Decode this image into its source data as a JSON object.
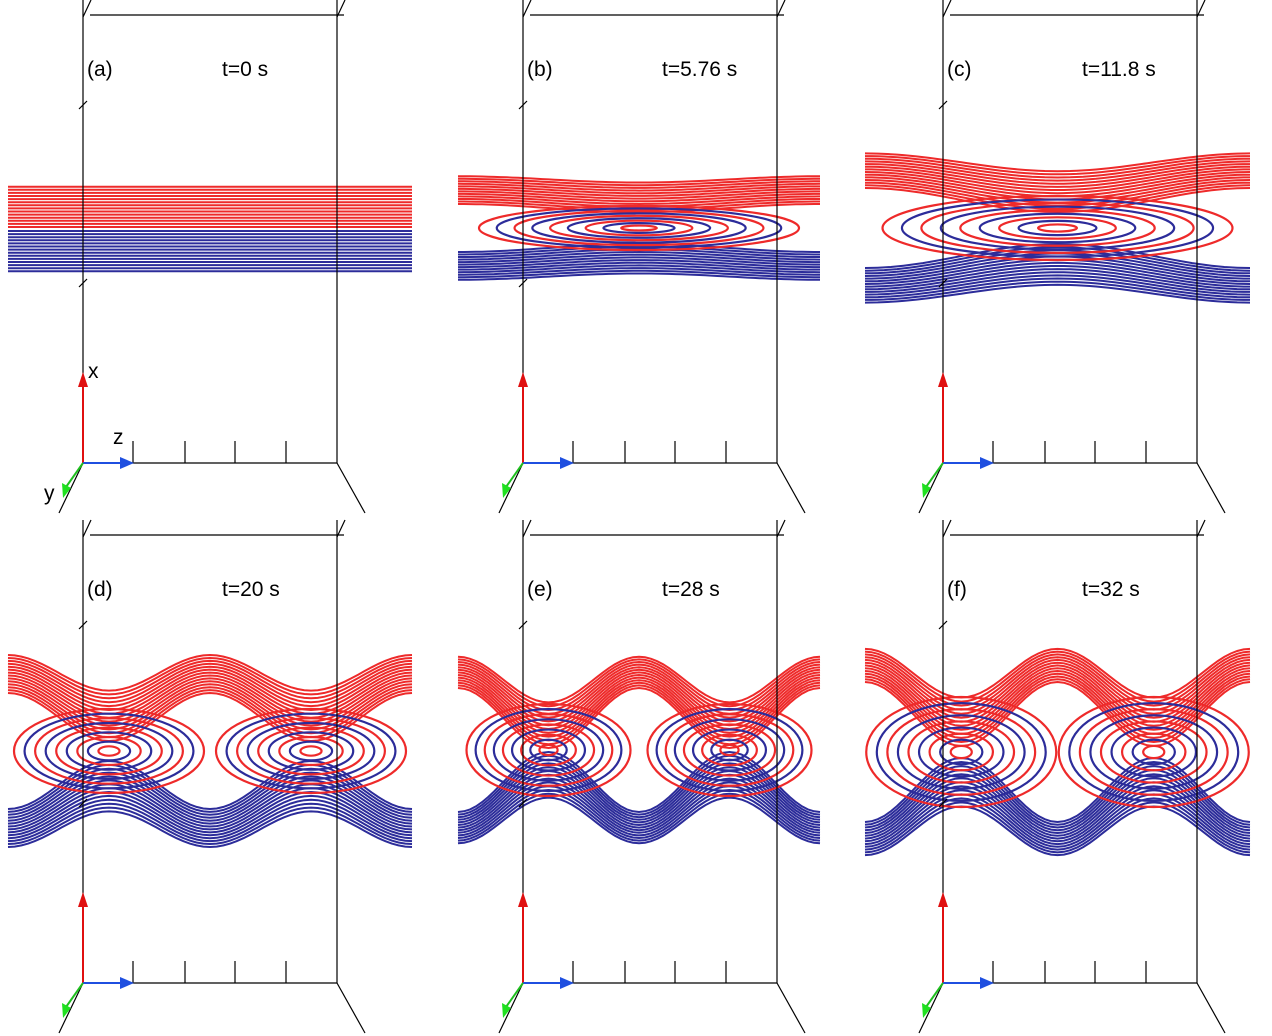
{
  "panels": [
    {
      "label": "(a)",
      "time": "t=0 s"
    },
    {
      "label": "(b)",
      "time": "t=5.76 s"
    },
    {
      "label": "(c)",
      "time": "t=11.8 s"
    },
    {
      "label": "(d)",
      "time": "t=20 s"
    },
    {
      "label": "(e)",
      "time": "t=28 s"
    },
    {
      "label": "(f)",
      "time": "t=32 s"
    }
  ],
  "axes": {
    "x": "x",
    "z": "z",
    "y": "y"
  }
}
